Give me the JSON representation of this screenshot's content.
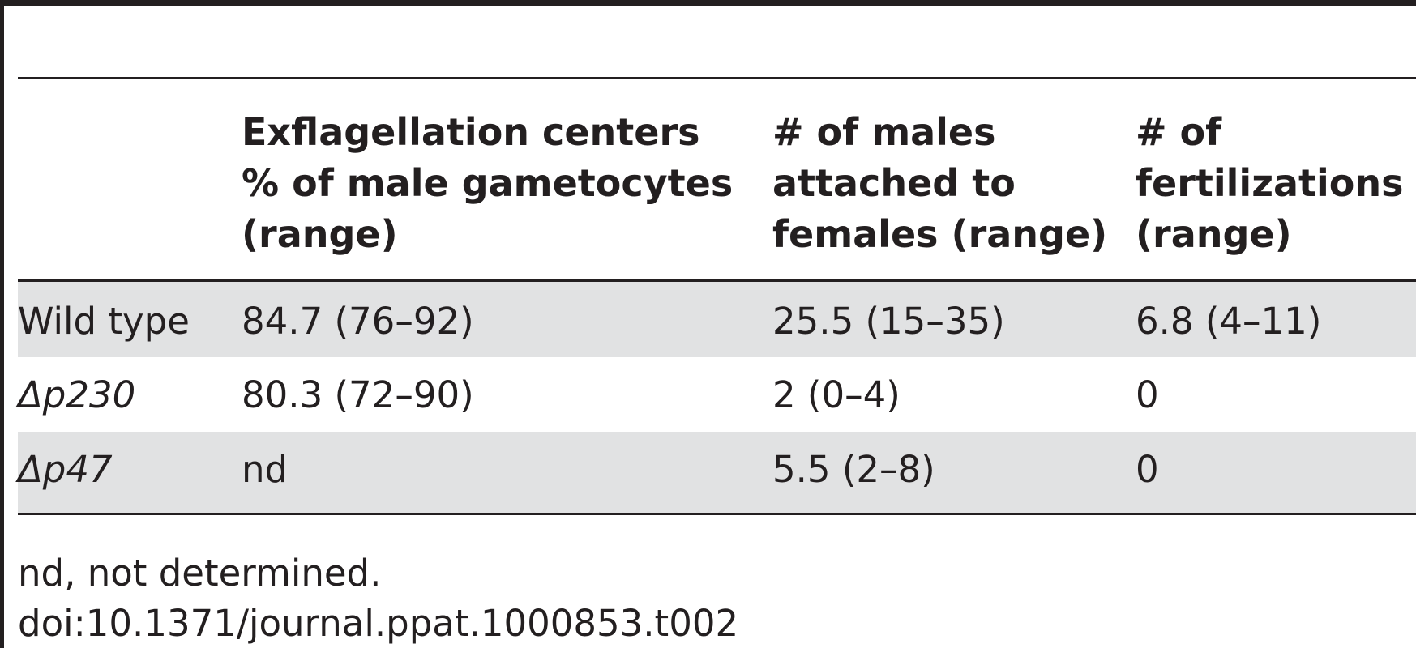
{
  "table": {
    "columns": [
      {
        "lines": [
          "Exflagellation centers",
          "% of male gametocytes",
          "(range)"
        ]
      },
      {
        "lines": [
          "# of males",
          "attached to",
          "females (range)"
        ]
      },
      {
        "lines": [
          "# of",
          "fertilizations",
          "(range)"
        ]
      }
    ],
    "rows": [
      {
        "label": "Wild type",
        "cells": [
          "84.7 (76–92)",
          "25.5 (15–35)",
          "6.8 (4–11)"
        ]
      },
      {
        "label": "Δp230",
        "cells": [
          "80.3 (72–90)",
          "2 (0–4)",
          "0"
        ]
      },
      {
        "label": "Δp47",
        "cells": [
          "nd",
          "5.5 (2–8)",
          "0"
        ]
      }
    ]
  },
  "footnote": "nd, not determined.",
  "doi": "doi:10.1371/journal.ppat.1000853.t002"
}
